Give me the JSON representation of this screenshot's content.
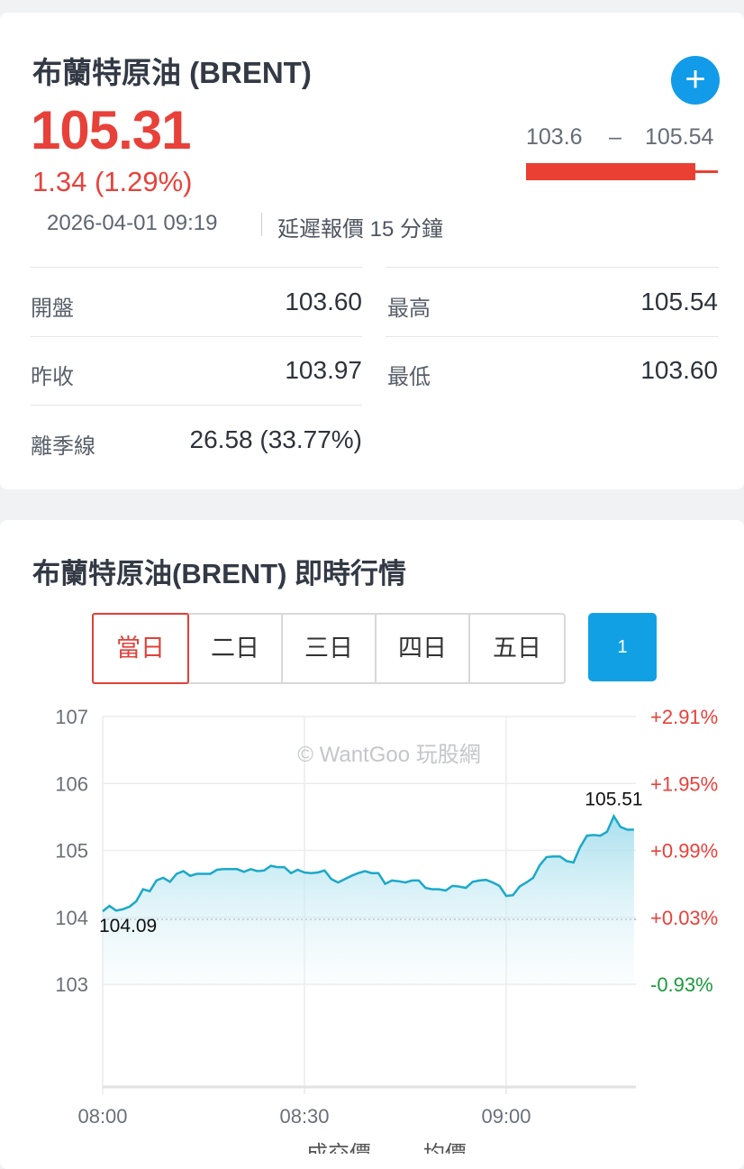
{
  "header": {
    "title": "布蘭特原油 (BRENT)",
    "add_icon": "plus-icon",
    "price": "105.31",
    "change": "1.34 (1.29%)",
    "range_low": "103.6",
    "range_dash": "–",
    "range_high": "105.54",
    "range_position": 0.87,
    "timestamp": "2026-04-01 09:19",
    "delay_note": "延遲報價 15 分鐘"
  },
  "stats": {
    "open_label": "開盤",
    "open": "103.60",
    "high_label": "最高",
    "high": "105.54",
    "prev_close_label": "昨收",
    "prev_close": "103.97",
    "low_label": "最低",
    "low": "103.60",
    "season_label": "離季線",
    "season": "26.58 (33.77%)"
  },
  "chart_section": {
    "title": "布蘭特原油(BRENT) 即時行情",
    "tabs": [
      "當日",
      "二日",
      "三日",
      "四日",
      "五日"
    ],
    "selected_tab": "當日",
    "interval_button": "1",
    "watermark": "© WantGoo 玩股網",
    "legend": [
      "成交價",
      "均價"
    ]
  },
  "colors": {
    "up": "#e8413a",
    "down": "#1a9a3c",
    "accent": "#12a0e4",
    "line": "#1ba9c9"
  },
  "chart_data": {
    "type": "area",
    "y_ticks": [
      107,
      106,
      105,
      104,
      103
    ],
    "y_right_ticks": [
      "+2.91%",
      "+1.95%",
      "+0.99%",
      "+0.03%",
      "-0.93%"
    ],
    "x_ticks": [
      "08:00",
      "08:30",
      "09:00"
    ],
    "ylim": [
      101.5,
      107
    ],
    "xlim": [
      "08:00",
      "09:19"
    ],
    "reference_line": 103.97,
    "start_label": "104.09",
    "max_label": "105.51",
    "start_time": "08:00",
    "interval_minutes": 1,
    "values": [
      104.09,
      104.17,
      104.1,
      104.12,
      104.16,
      104.24,
      104.42,
      104.39,
      104.55,
      104.59,
      104.53,
      104.65,
      104.69,
      104.62,
      104.65,
      104.65,
      104.65,
      104.71,
      104.72,
      104.72,
      104.72,
      104.68,
      104.72,
      104.69,
      104.7,
      104.77,
      104.75,
      104.75,
      104.66,
      104.71,
      104.67,
      104.66,
      104.67,
      104.7,
      104.57,
      104.52,
      104.57,
      104.62,
      104.66,
      104.69,
      104.66,
      104.66,
      104.5,
      104.55,
      104.54,
      104.52,
      104.55,
      104.55,
      104.44,
      104.42,
      104.42,
      104.4,
      104.47,
      104.46,
      104.44,
      104.53,
      104.55,
      104.56,
      104.52,
      104.47,
      104.32,
      104.33,
      104.46,
      104.52,
      104.59,
      104.78,
      104.9,
      104.91,
      104.91,
      104.84,
      104.82,
      105.05,
      105.22,
      105.23,
      105.22,
      105.28,
      105.51,
      105.35,
      105.31,
      105.31
    ]
  }
}
